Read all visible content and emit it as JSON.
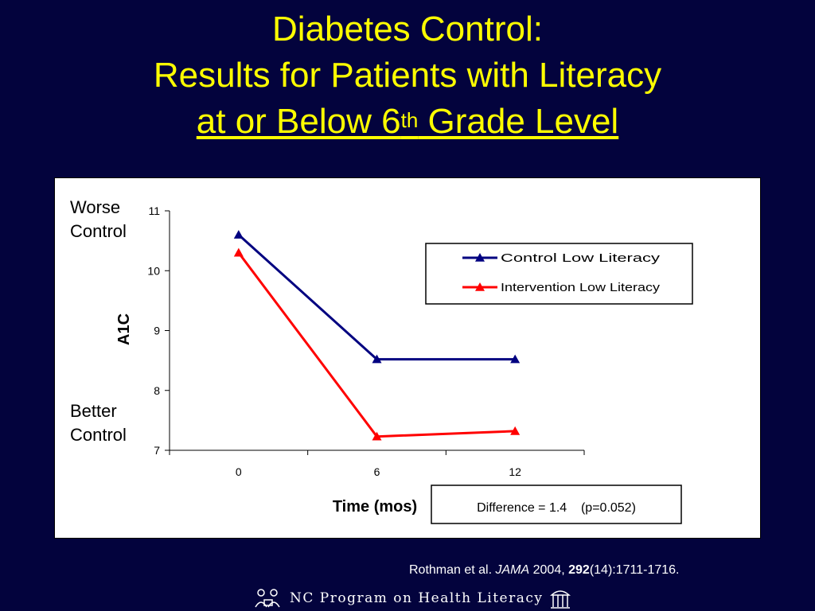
{
  "title": {
    "line1": "Diabetes Control:",
    "line2": "Results for Patients with Literacy",
    "line3_before": "at or Below 6",
    "line3_sup": "th",
    "line3_after": " Grade Level"
  },
  "annotations": {
    "worse_line1": "Worse",
    "worse_line2": "Control",
    "better_line1": "Better",
    "better_line2": "Control",
    "difference": "Difference = 1.4    (p=0.052)"
  },
  "citation": {
    "authors": "Rothman et al. ",
    "journal": "JAMA",
    "year": " 2004, ",
    "volume": "292",
    "pages": "(14):1711-1716."
  },
  "footer": {
    "text": "NC Program on Health Literacy",
    "left_icon": "people-reading-icon",
    "right_icon": "old-well-icon"
  },
  "chart_data": {
    "type": "line",
    "categories": [
      "0",
      "6",
      "12"
    ],
    "series": [
      {
        "name": "Control Low  Literacy",
        "values": [
          10.6,
          8.52,
          8.52
        ],
        "color": "#000080"
      },
      {
        "name": "Intervention Low  Literacy",
        "values": [
          10.3,
          7.23,
          7.32
        ],
        "color": "#ff0000"
      }
    ],
    "xlabel": "Time (mos)",
    "ylabel": "A1C",
    "ylim": [
      7,
      11
    ],
    "yticks": [
      "7",
      "8",
      "9",
      "10",
      "11"
    ],
    "grid": false,
    "legend": "top-right",
    "marker": "triangle"
  }
}
